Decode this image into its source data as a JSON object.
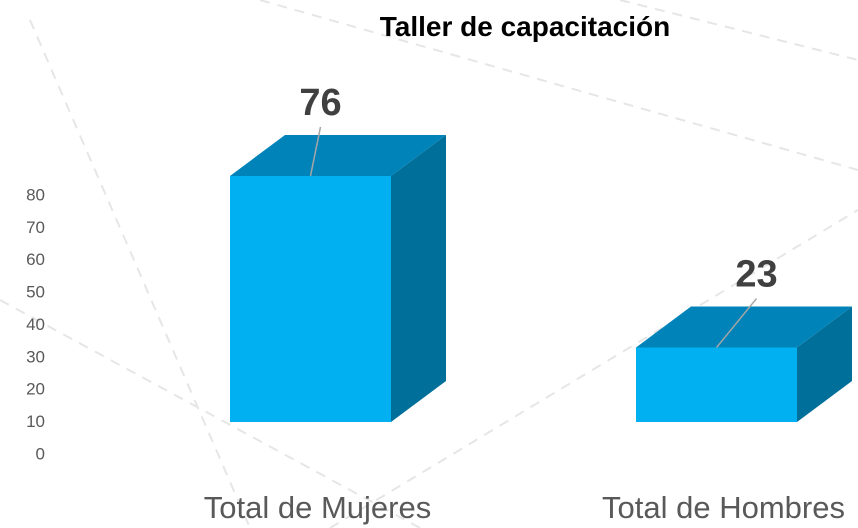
{
  "chart_data": {
    "type": "bar3d",
    "title": "Taller de capacitación",
    "categories": [
      "Total de Mujeres",
      "Total de Hombres"
    ],
    "values": [
      76,
      23
    ],
    "color": "#00b0f0",
    "ylim": [
      0,
      80
    ],
    "yticks": [
      0,
      10,
      20,
      30,
      40,
      50,
      60,
      70,
      80
    ]
  }
}
